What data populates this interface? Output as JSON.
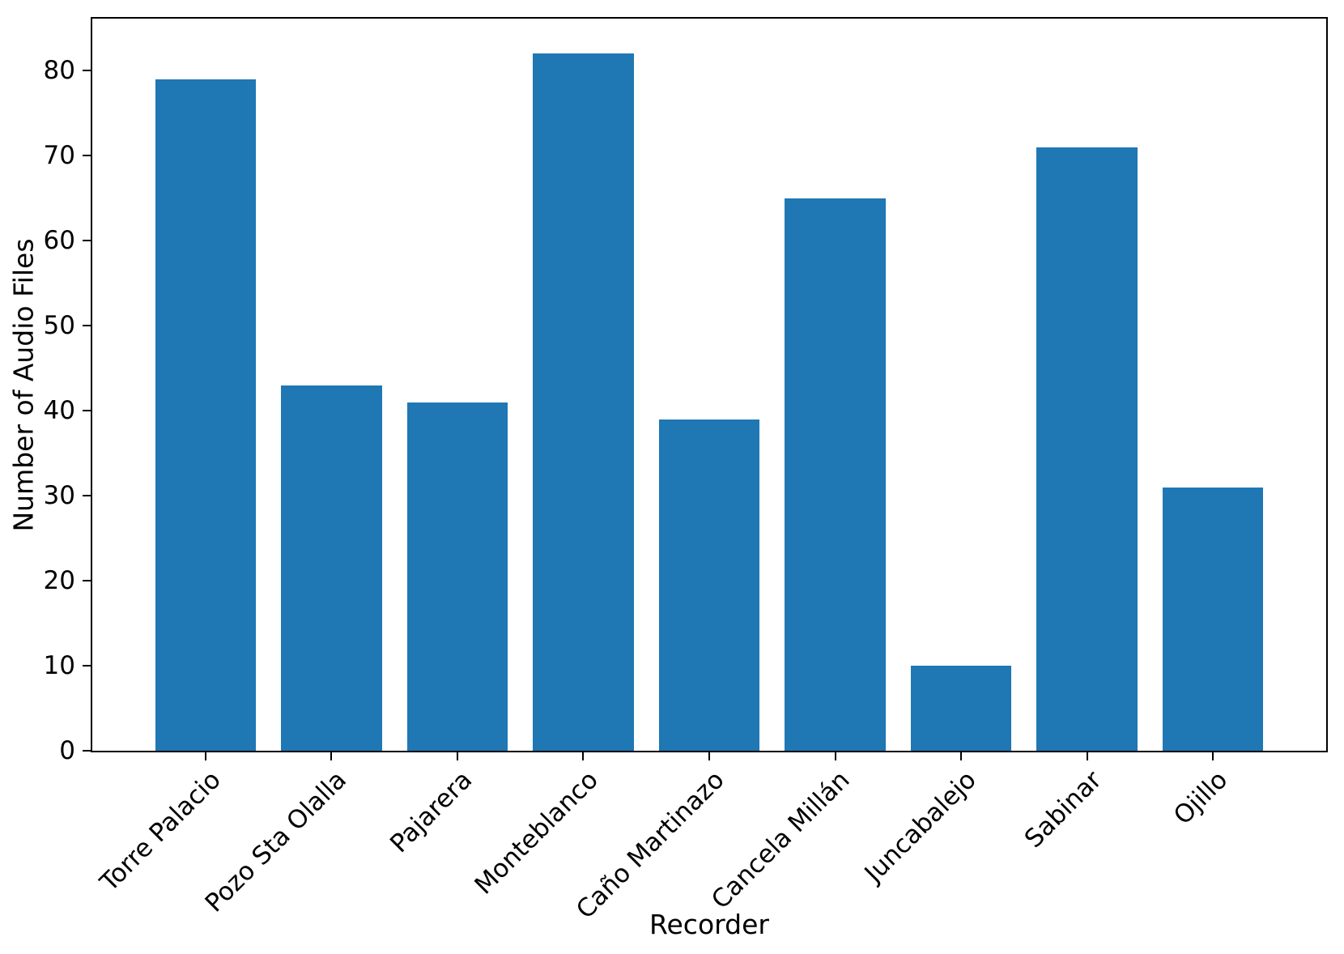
{
  "figure": {
    "background": "#ffffff"
  },
  "chart_data": {
    "type": "bar",
    "title": "",
    "categories": [
      "Torre Palacio",
      "Pozo Sta Olalla",
      "Pajarera",
      "Monteblanco",
      "Caño Martinazo",
      "Cancela Millán",
      "Juncabalejo",
      "Sabinar",
      "Ojillo"
    ],
    "values": [
      79,
      43,
      41,
      82,
      39,
      65,
      10,
      71,
      31
    ],
    "xlabel": "Recorder",
    "ylabel": "Number of Audio Files",
    "ylim": [
      0,
      86.1
    ],
    "yticks": [
      0,
      10,
      20,
      30,
      40,
      50,
      60,
      70,
      80
    ],
    "bar_color": "#1f77b4",
    "axis_color": "#000000",
    "grid": false,
    "legend": null,
    "x_tick_rotation_deg": 45
  }
}
